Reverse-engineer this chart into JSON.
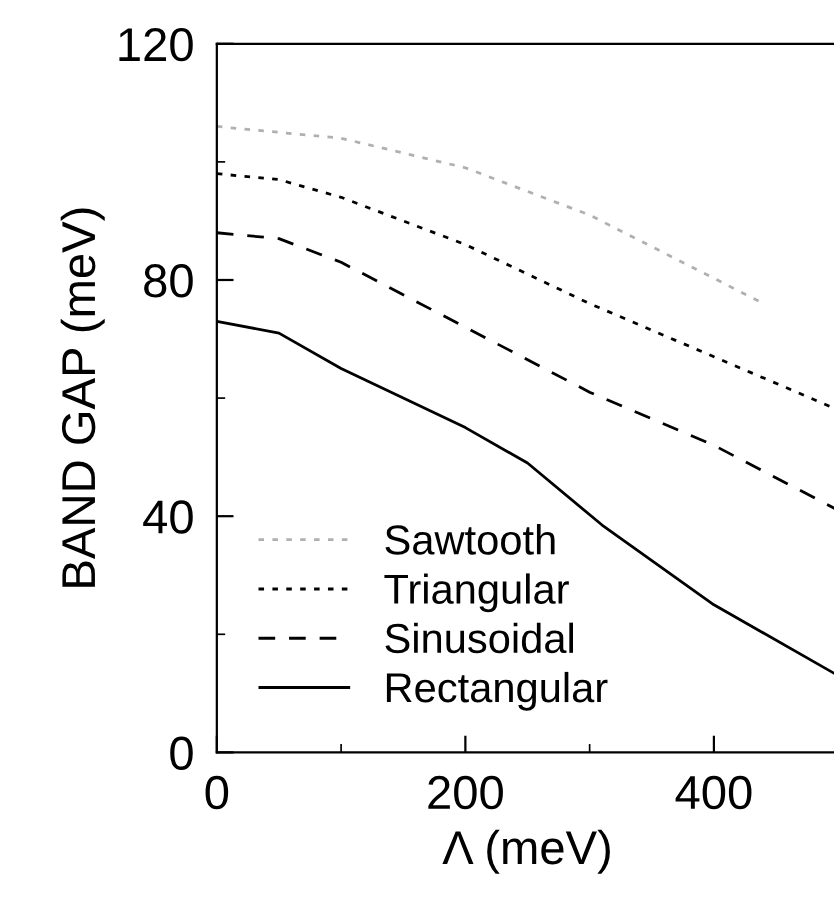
{
  "chart_data": {
    "type": "line",
    "xlabel": "Λ (meV)",
    "ylabel": "BAND GAP (meV)",
    "xlim": [
      0,
      500
    ],
    "ylim": [
      0,
      120
    ],
    "xticks": [
      0,
      200,
      400
    ],
    "yticks": [
      0,
      40,
      80,
      120
    ],
    "grid": false,
    "legend": "bottom left",
    "series": [
      {
        "name": "Sawtooth",
        "color": "#b0b0b0",
        "line_style": "dotted",
        "x": [
          0,
          100,
          200,
          300,
          440
        ],
        "values": [
          106,
          104,
          99,
          91,
          76
        ]
      },
      {
        "name": "Triangular",
        "color": "#000000",
        "line_style": "dotted",
        "x": [
          0,
          50,
          100,
          200,
          300,
          400,
          500
        ],
        "values": [
          98,
          97,
          94,
          86,
          76,
          67,
          58
        ]
      },
      {
        "name": "Sinusoidal",
        "color": "#000000",
        "line_style": "dashed",
        "x": [
          0,
          50,
          100,
          200,
          300,
          400,
          500
        ],
        "values": [
          88,
          87,
          83,
          72,
          61,
          52,
          41
        ]
      },
      {
        "name": "Rectangular",
        "color": "#000000",
        "line_style": "solid",
        "x": [
          0,
          50,
          100,
          200,
          250,
          310,
          400,
          500
        ],
        "values": [
          73,
          71,
          65,
          55,
          49,
          38.5,
          25,
          13
        ]
      }
    ]
  }
}
